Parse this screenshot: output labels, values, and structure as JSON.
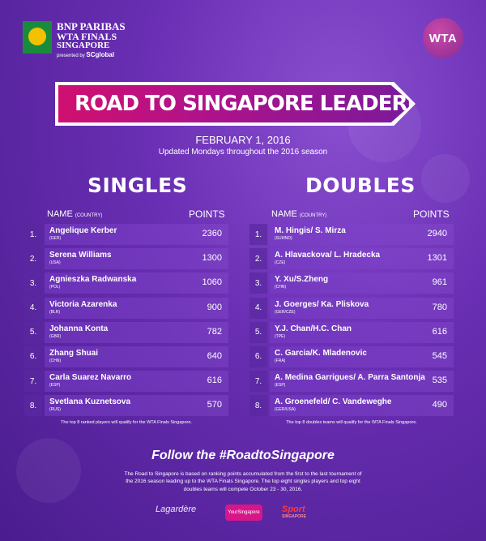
{
  "header": {
    "logo": {
      "line1": "BNP PARIBAS",
      "line2": "WTA FINALS",
      "line3": "SINGAPORE",
      "presented_by": "presented by",
      "sponsor": "SCglobal"
    },
    "wta_badge": "WTA",
    "title": "ROAD TO SINGAPORE LEADERBOARD",
    "date": "FEBRUARY 1, 2016",
    "subtitle": "Updated Mondays throughout the 2016 season"
  },
  "singles": {
    "title": "SINGLES",
    "name_header": "NAME",
    "country_header": "(COUNTRY)",
    "points_header": "POINTS",
    "rows": [
      {
        "rank": "1.",
        "name": "Angelique Kerber",
        "country": "(GER)",
        "points": "2360"
      },
      {
        "rank": "2.",
        "name": "Serena Williams",
        "country": "(USA)",
        "points": "1300"
      },
      {
        "rank": "3.",
        "name": "Agnieszka Radwanska",
        "country": "(POL)",
        "points": "1060"
      },
      {
        "rank": "4.",
        "name": "Victoria Azarenka",
        "country": "(BLR)",
        "points": "900"
      },
      {
        "rank": "5.",
        "name": "Johanna Konta",
        "country": "(GBR)",
        "points": "782"
      },
      {
        "rank": "6.",
        "name": "Zhang Shuai",
        "country": "(CHN)",
        "points": "640"
      },
      {
        "rank": "7.",
        "name": "Carla Suarez Navarro",
        "country": "(ESP)",
        "points": "616"
      },
      {
        "rank": "8.",
        "name": "Svetlana Kuznetsova",
        "country": "(RUS)",
        "points": "570"
      }
    ],
    "note": "The top 8 ranked players will qualify for the WTA Finals Singapore."
  },
  "doubles": {
    "title": "DOUBLES",
    "name_header": "NAME",
    "country_header": "(COUNTRY)",
    "points_header": "POINTS",
    "rows": [
      {
        "rank": "1.",
        "name": "M. Hingis/ S. Mirza",
        "country": "(SUI/IND)",
        "points": "2940"
      },
      {
        "rank": "2.",
        "name": "A. Hlavackova/ L. Hradecka",
        "country": "(CZE)",
        "points": "1301"
      },
      {
        "rank": "3.",
        "name": "Y. Xu/S.Zheng",
        "country": "(CHN)",
        "points": "961"
      },
      {
        "rank": "4.",
        "name": "J. Goerges/ Ka. Pliskova",
        "country": "(GER/CZE)",
        "points": "780"
      },
      {
        "rank": "5.",
        "name": "Y.J. Chan/H.C. Chan",
        "country": "(TPE)",
        "points": "616"
      },
      {
        "rank": "6.",
        "name": "C. Garcia/K. Mladenovic",
        "country": "(FRA)",
        "points": "545"
      },
      {
        "rank": "7.",
        "name": "A. Medina Garrigues/ A. Parra Santonja",
        "country": "(ESP)",
        "points": "535"
      },
      {
        "rank": "8.",
        "name": "A. Groenefeld/ C. Vandeweghe",
        "country": "(GER/USA)",
        "points": "490"
      }
    ],
    "note": "The top 8 doubles teams will qualify for the WTA Finals Singapore."
  },
  "footer": {
    "follow": "Follow the #RoadtoSingapore",
    "description": "The Road to Singapore is based on ranking points accumulated from the first to the last tournament of the 2016 season leading up to the WTA Finals Singapore. The top eight singles players and top eight doubles teams will compete October 23 - 30, 2016.",
    "sponsors": {
      "lagardere": "Lagardère",
      "your_singapore": "YourSingapore",
      "sport": "Sport",
      "sport_sub": "SINGAPORE"
    }
  },
  "colors": {
    "accent_pink": "#d01070",
    "bg_purple": "#6a2fb4"
  }
}
